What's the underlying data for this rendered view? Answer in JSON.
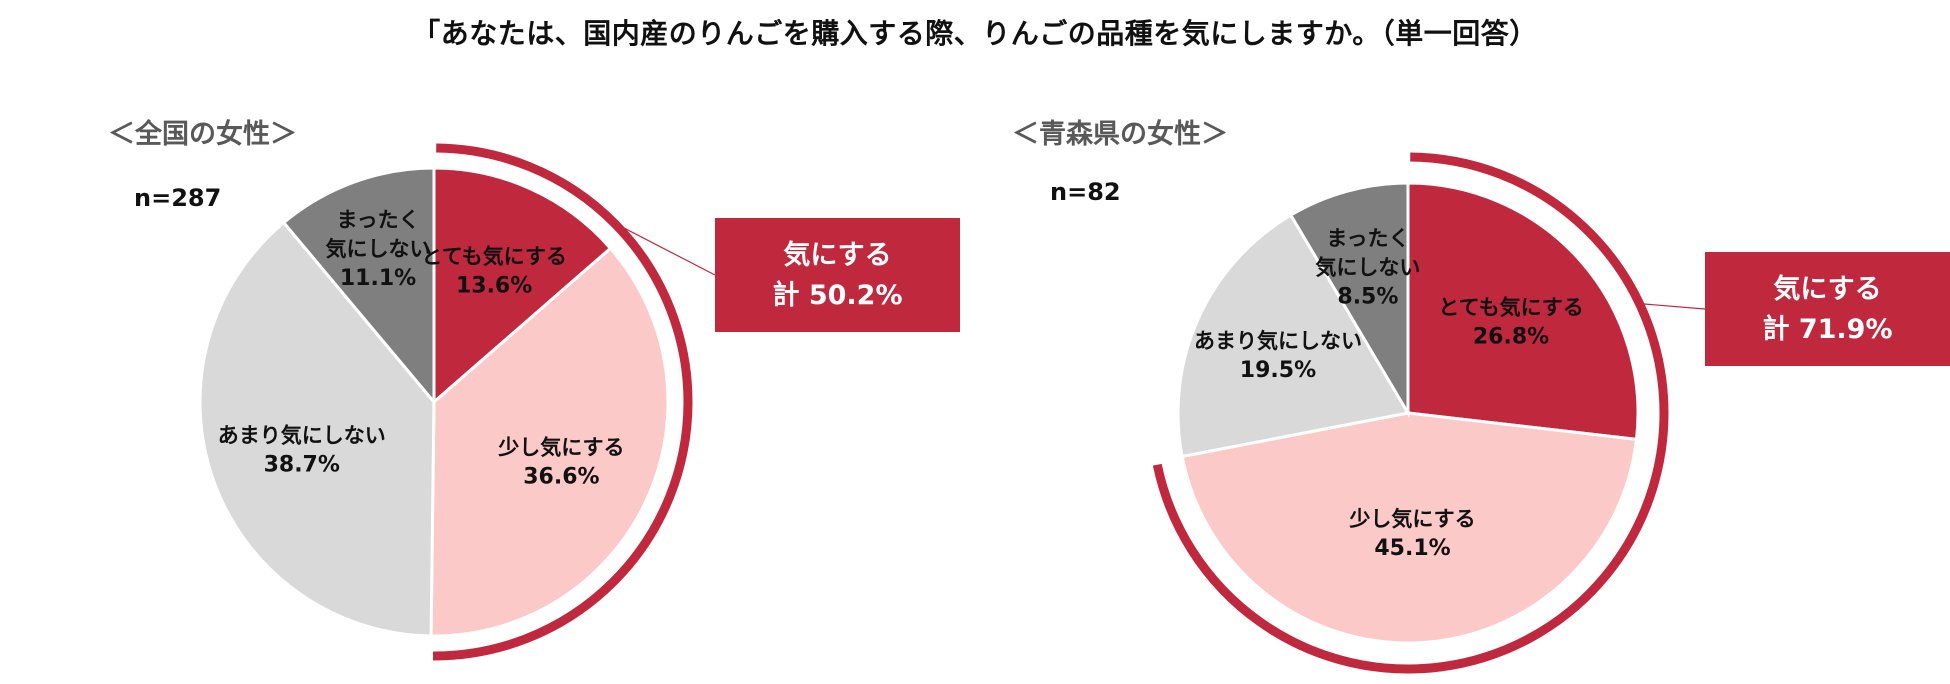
{
  "title": "「あなたは、国内産のりんごを購入する際、りんごの品種を気にしますか。（単一回答）",
  "colors": {
    "strong": "#c0283e",
    "slight": "#fcc9c9",
    "little": "#d9d9d9",
    "none": "#7f7f7f",
    "arc": "#c0283e",
    "callout_text": "#ffffff",
    "label_text": "#111111"
  },
  "chart_data": [
    {
      "type": "pie",
      "title": "＜全国の女性＞",
      "n": "n=287",
      "slices": [
        {
          "label": [
            "とても気にする"
          ],
          "value": 13.6,
          "value_label": "13.6%",
          "color": "#c0283e"
        },
        {
          "label": [
            "少し気にする"
          ],
          "value": 36.6,
          "value_label": "36.6%",
          "color": "#fcc9c9"
        },
        {
          "label": [
            "あまり気にしない"
          ],
          "value": 38.7,
          "value_label": "38.7%",
          "color": "#d9d9d9"
        },
        {
          "label": [
            "まったく",
            "気にしない"
          ],
          "value": 11.1,
          "value_label": "11.1%",
          "color": "#7f7f7f"
        }
      ],
      "callout": {
        "line1": "気にする",
        "line2": "計 50.2%",
        "total": 50.2
      }
    },
    {
      "type": "pie",
      "title": "＜青森県の女性＞",
      "n": "n=82",
      "slices": [
        {
          "label": [
            "とても気にする"
          ],
          "value": 26.8,
          "value_label": "26.8%",
          "color": "#c0283e"
        },
        {
          "label": [
            "少し気にする"
          ],
          "value": 45.1,
          "value_label": "45.1%",
          "color": "#fcc9c9"
        },
        {
          "label": [
            "あまり気にしない"
          ],
          "value": 19.5,
          "value_label": "19.5%",
          "color": "#d9d9d9"
        },
        {
          "label": [
            "まったく",
            "気にしない"
          ],
          "value": 8.5,
          "value_label": "8.5%",
          "color": "#7f7f7f"
        }
      ],
      "callout": {
        "line1": "気にする",
        "line2": "計 71.9%",
        "total": 71.9
      }
    }
  ]
}
